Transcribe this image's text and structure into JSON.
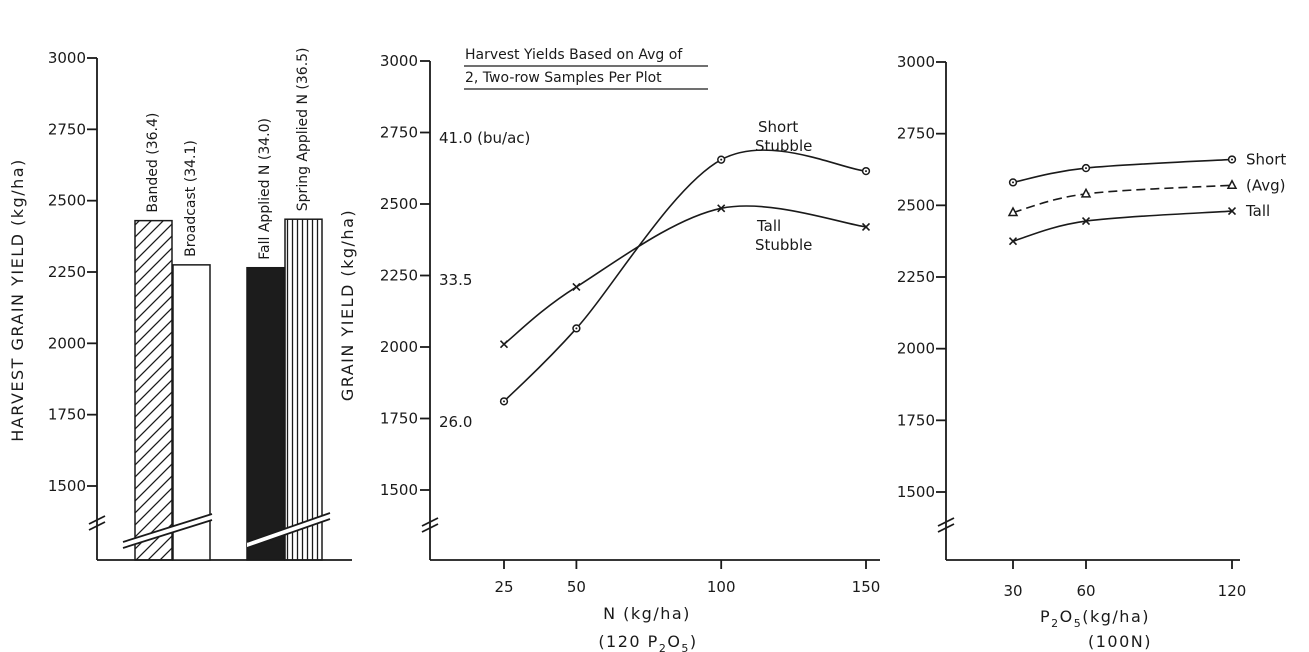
{
  "chart_data": [
    {
      "type": "bar",
      "ylabel": "HARVEST GRAIN YIELD (kg/ha)",
      "ylim": [
        1500,
        3000
      ],
      "yticks": [
        "1500",
        "1750",
        "2000",
        "2250",
        "2500",
        "2750",
        "3000"
      ],
      "axis_break": true,
      "bars": [
        {
          "label": "Banded (36.4)",
          "value": 2430,
          "fill": "diagonal-hatch"
        },
        {
          "label": "Broadcast (34.1)",
          "value": 2275,
          "fill": "white"
        },
        {
          "label": "Fall Applied N (34.0)",
          "value": 2265,
          "fill": "solid-black"
        },
        {
          "label": "Spring Applied N (36.5)",
          "value": 2435,
          "fill": "vertical-lines"
        }
      ]
    },
    {
      "type": "line",
      "title_lines": [
        "Harvest Yields Based on Avg of",
        "2, Two-row Samples Per Plot"
      ],
      "ylabel": "GRAIN YIELD (kg/ha)",
      "xlabel": "N (kg/ha)",
      "xlabel_sub": "(120 P2O5)",
      "xticks": [
        "25",
        "50",
        "100",
        "150"
      ],
      "x": [
        25,
        50,
        100,
        150
      ],
      "ylim": [
        1500,
        3000
      ],
      "yticks": [
        "1500",
        "1750",
        "2000",
        "2250",
        "2500",
        "2750",
        "3000"
      ],
      "axis_break": true,
      "secondary_labels": [
        "41.0 (bu/ac)",
        "33.5",
        "26.0"
      ],
      "series": [
        {
          "name": "Short Stubble",
          "label_lines": [
            "Short",
            "Stubble"
          ],
          "marker": "circle",
          "values": [
            1810,
            2065,
            2655,
            2615
          ]
        },
        {
          "name": "Tall Stubble",
          "label_lines": [
            "Tall",
            "Stubble"
          ],
          "marker": "x",
          "values": [
            2010,
            2210,
            2485,
            2420
          ]
        }
      ]
    },
    {
      "type": "line",
      "xlabel": "P2O5(kg/ha)",
      "xlabel_sub": "(100N)",
      "xticks": [
        "30",
        "60",
        "120"
      ],
      "x": [
        30,
        60,
        120
      ],
      "ylim": [
        1500,
        3000
      ],
      "yticks": [
        "1500",
        "1750",
        "2000",
        "2250",
        "2500",
        "2750",
        "3000"
      ],
      "axis_break": true,
      "series": [
        {
          "name": "Short",
          "marker": "circle",
          "style": "solid",
          "values": [
            2580,
            2630,
            2660
          ]
        },
        {
          "name": "(Avg)",
          "marker": "triangle",
          "style": "dashed",
          "values": [
            2475,
            2540,
            2570
          ]
        },
        {
          "name": "Tall",
          "marker": "x",
          "style": "solid",
          "values": [
            2375,
            2445,
            2480
          ]
        }
      ]
    }
  ]
}
